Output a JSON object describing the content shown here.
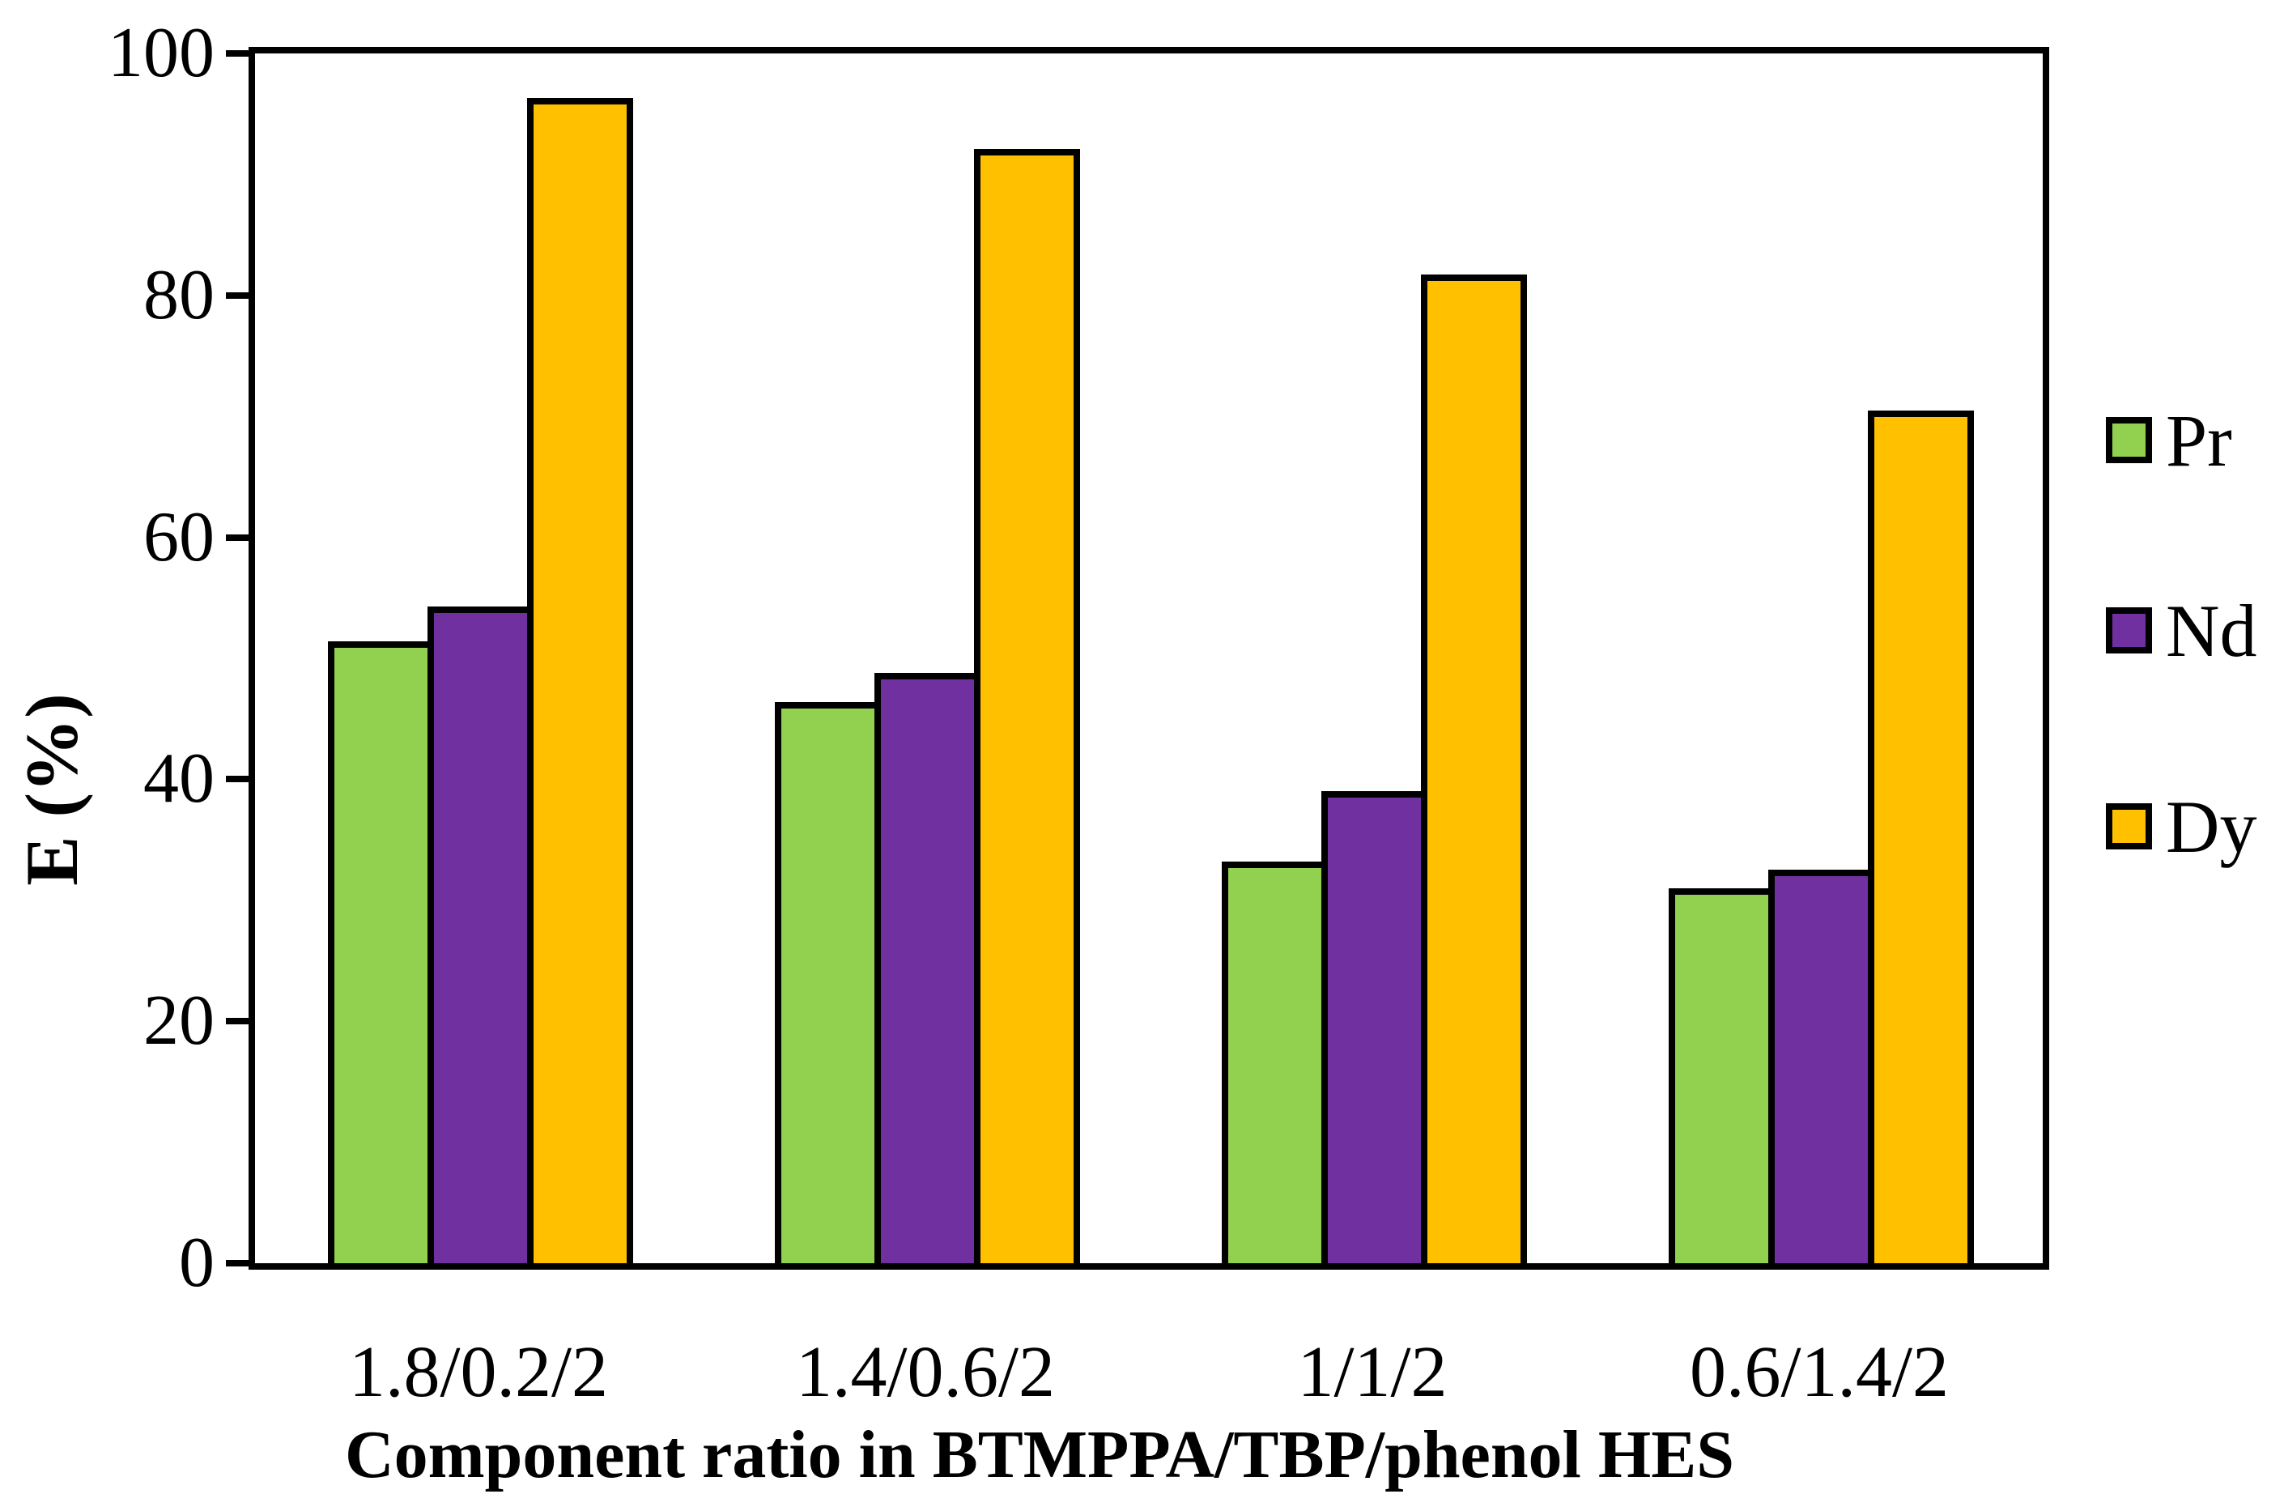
{
  "figure": {
    "background": "#ffffff",
    "border_color": "#000000"
  },
  "chart_data": {
    "type": "bar",
    "title": "",
    "categories": [
      "1.8/0.2/2",
      "1.4/0.6/2",
      "1/1/2",
      "0.6/1.4/2"
    ],
    "series": [
      {
        "name": "Pr",
        "color": "#92D050",
        "values": [
          51.4,
          46.4,
          33.2,
          31.0
        ]
      },
      {
        "name": "Nd",
        "color": "#7030A0",
        "values": [
          54.3,
          48.8,
          39.0,
          32.5
        ]
      },
      {
        "name": "Dy",
        "color": "#FFC000",
        "values": [
          96.3,
          92.1,
          81.7,
          70.5
        ]
      }
    ],
    "xlabel": "Component ratio in BTMPPA/TBP/phenol HES",
    "ylabel": "E (%)",
    "ylim": [
      0,
      100
    ],
    "yticks": [
      0,
      20,
      40,
      60,
      80,
      100
    ],
    "grid": false,
    "legend_position": "right",
    "legend_labels": [
      "Pr",
      "Nd",
      "Dy"
    ],
    "bar_border_color": "#000000"
  }
}
